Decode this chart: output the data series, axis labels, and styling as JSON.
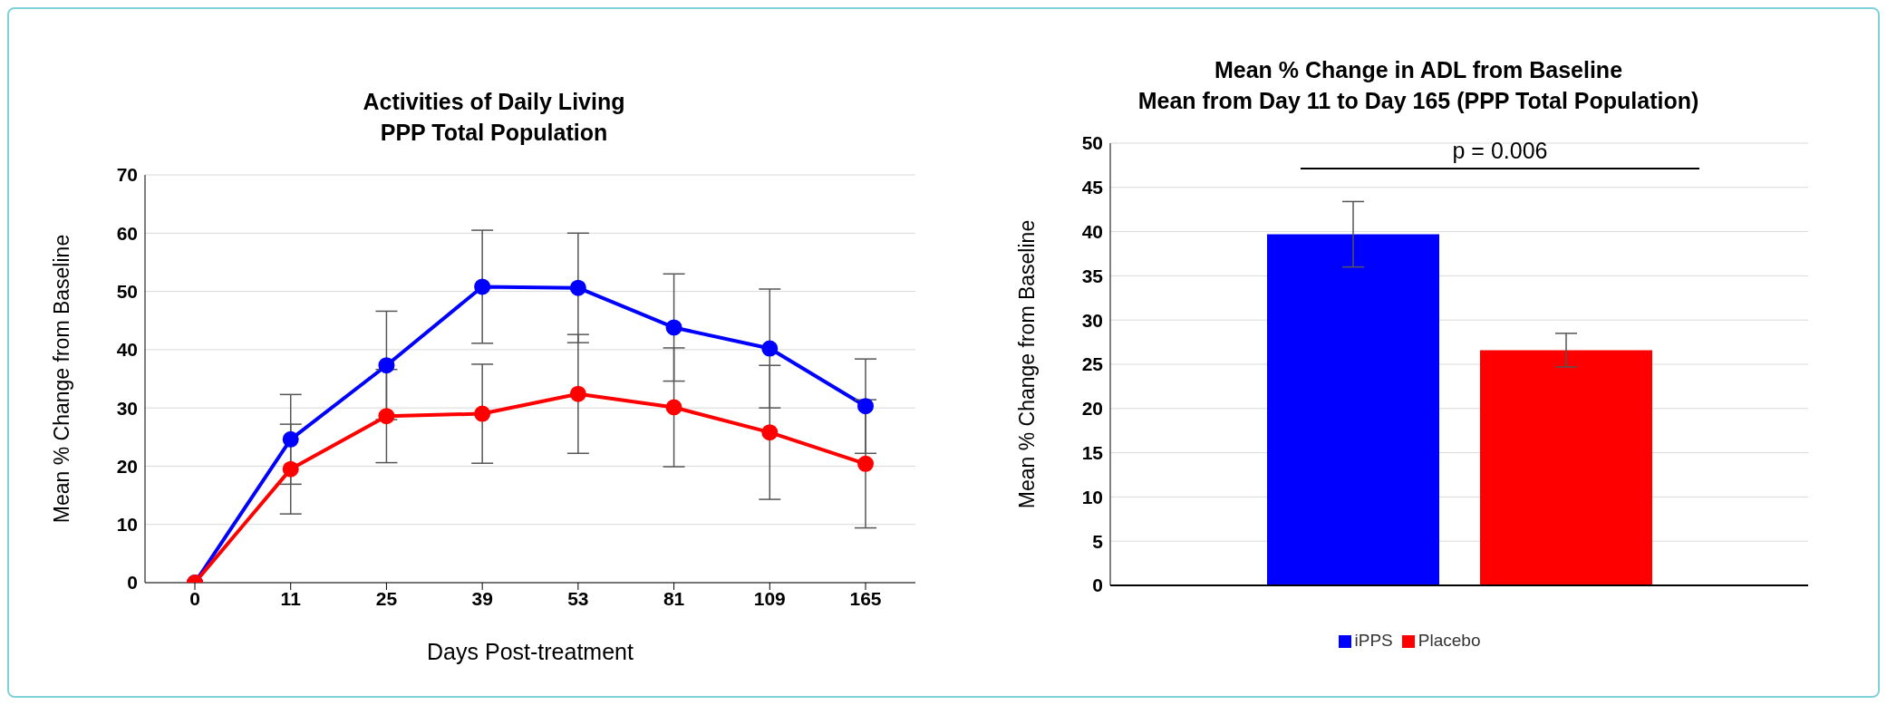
{
  "chart_data": [
    {
      "type": "line",
      "title": "Activities of Daily Living\nPPP Total Population",
      "xlabel": "Days Post-treatment",
      "ylabel": "Mean % Change from Baseline",
      "categories": [
        "0",
        "11",
        "25",
        "39",
        "53",
        "81",
        "109",
        "165"
      ],
      "series": [
        {
          "color": "#0000ff",
          "values": [
            0,
            24.6,
            37.3,
            50.8,
            50.6,
            43.8,
            40.2,
            30.3
          ],
          "errors": [
            null,
            7.7,
            9.3,
            9.7,
            9.4,
            9.2,
            10.2,
            8.1
          ]
        },
        {
          "color": "#ff0000",
          "values": [
            0,
            19.5,
            28.6,
            29.0,
            32.4,
            30.1,
            25.8,
            20.4
          ],
          "errors": [
            null,
            7.7,
            8.0,
            8.5,
            10.2,
            10.2,
            11.5,
            11.0
          ]
        }
      ],
      "ylim": [
        0,
        70
      ],
      "yticks": [
        0,
        10,
        20,
        30,
        40,
        50,
        60,
        70
      ],
      "grid": "y",
      "marker": "circle",
      "line_style": "solid"
    },
    {
      "type": "bar",
      "title": "Mean % Change in ADL from Baseline\nMean from Day 11 to Day 165 (PPP Total Population)",
      "ylabel": "Mean % Change from Baseline",
      "categories": [
        null
      ],
      "series": [
        {
          "name": "iPPS",
          "color": "#0000ff",
          "values": [
            39.7
          ],
          "errors": [
            3.7
          ]
        },
        {
          "name": "Placebo",
          "color": "#ff0000",
          "values": [
            26.6
          ],
          "errors": [
            1.9
          ]
        }
      ],
      "ylim": [
        0,
        50
      ],
      "yticks": [
        0,
        5,
        10,
        15,
        20,
        25,
        30,
        35,
        40,
        45,
        50
      ],
      "grid": "y",
      "legend": "bottom",
      "annotations": [
        "p = 0.006"
      ]
    }
  ]
}
